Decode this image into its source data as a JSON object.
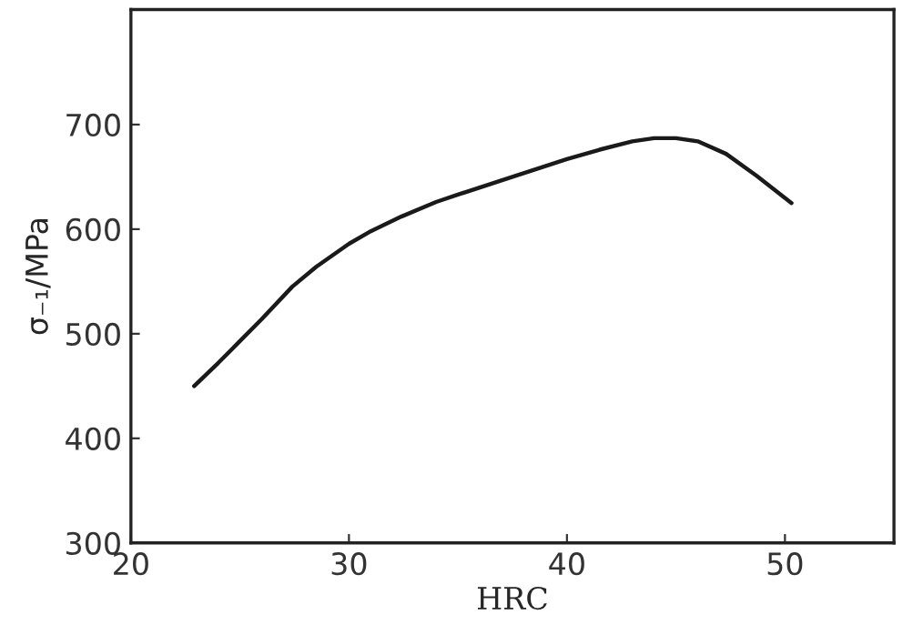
{
  "chart_data": {
    "type": "line",
    "xlabel": "HRC",
    "ylabel": "σ₋₁/MPa",
    "xlim": [
      20,
      55
    ],
    "ylim": [
      300,
      810
    ],
    "xticks": [
      20,
      30,
      40,
      50
    ],
    "yticks": [
      300,
      400,
      500,
      600,
      700
    ],
    "grid": false,
    "marker": "none",
    "line_style": "solid",
    "series": [
      {
        "color": "#1a1a1a",
        "x": [
          22.9,
          24,
          25,
          26,
          27.4,
          28.5,
          30,
          31,
          32.4,
          34,
          35,
          37.5,
          40,
          41.5,
          43,
          44,
          45,
          46,
          47.3,
          48.7,
          49.5,
          50.3
        ],
        "values": [
          450,
          472,
          493,
          514,
          545,
          564,
          586,
          598,
          612,
          626,
          633,
          650,
          667,
          676,
          684,
          687,
          687,
          684,
          672,
          651,
          638,
          625
        ]
      }
    ]
  }
}
